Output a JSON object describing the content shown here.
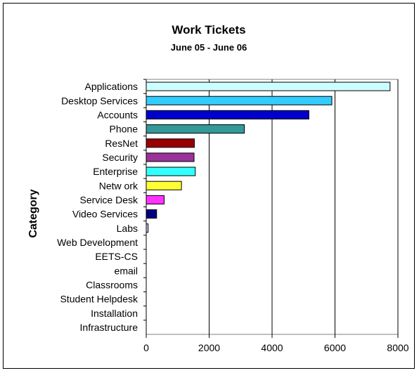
{
  "chart_data": {
    "type": "bar",
    "orientation": "horizontal",
    "title": "Work Tickets",
    "subtitle": "June 05 - June 06",
    "xlabel": "",
    "ylabel": "Category",
    "xlim": [
      0,
      8000
    ],
    "xticks": [
      0,
      2000,
      4000,
      6000,
      8000
    ],
    "grid": true,
    "legend": "none",
    "categories": [
      "Applications",
      "Desktop Services",
      "Accounts",
      "Phone",
      "ResNet",
      "Security",
      "Enterprise",
      "Netw ork",
      "Service Desk",
      "Video Services",
      "Labs",
      "Web Development",
      "EETS-CS",
      "email",
      "Classrooms",
      "Student Helpdesk",
      "Installation",
      "Infrastructure"
    ],
    "values": [
      7750,
      5900,
      5170,
      3120,
      1530,
      1520,
      1560,
      1120,
      570,
      330,
      60,
      0,
      0,
      0,
      0,
      0,
      0,
      0
    ],
    "colors": [
      "#ccffff",
      "#33ccff",
      "#0000cc",
      "#339999",
      "#990000",
      "#993399",
      "#33ffff",
      "#ffff33",
      "#ff33ff",
      "#000080",
      "#ccccff",
      "#ffffff",
      "#ffffff",
      "#ffffff",
      "#ffffff",
      "#ffffff",
      "#ffffff",
      "#ffffff"
    ]
  }
}
